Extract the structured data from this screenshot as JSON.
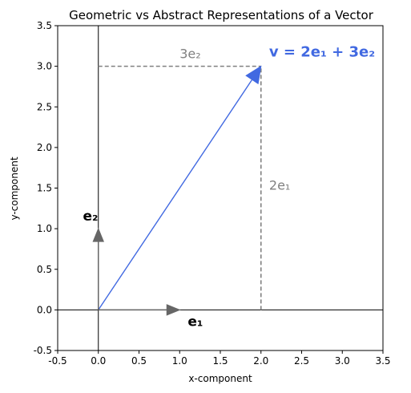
{
  "chart_data": {
    "type": "line",
    "title": "Geometric vs Abstract Representations of a Vector",
    "xlabel": "x-component",
    "ylabel": "y-component",
    "xlim": [
      -0.5,
      3.5
    ],
    "ylim": [
      -0.5,
      3.5
    ],
    "xticks": [
      "-0.5",
      "0.0",
      "0.5",
      "1.0",
      "1.5",
      "2.0",
      "2.5",
      "3.0",
      "3.5"
    ],
    "yticks": [
      "-0.5",
      "0.0",
      "0.5",
      "1.0",
      "1.5",
      "2.0",
      "2.5",
      "3.0",
      "3.5"
    ],
    "grid": false,
    "vectors": [
      {
        "label": "v = 2e₁ + 3e₂",
        "from": [
          0,
          0
        ],
        "to": [
          2,
          3
        ],
        "color": "#4169e1"
      },
      {
        "label": "e₁",
        "from": [
          0,
          0
        ],
        "to": [
          1,
          0
        ],
        "color": "#666666"
      },
      {
        "label": "e₂",
        "from": [
          0,
          0
        ],
        "to": [
          0,
          1
        ],
        "color": "#666666"
      }
    ],
    "component_lines": [
      {
        "label": "3e₂",
        "points": [
          [
            0,
            3
          ],
          [
            2,
            3
          ]
        ],
        "color": "#808080"
      },
      {
        "label": "2e₁",
        "points": [
          [
            2,
            0
          ],
          [
            2,
            3
          ]
        ],
        "color": "#808080"
      }
    ],
    "axis_lines": [
      {
        "x": 0
      },
      {
        "y": 0
      }
    ]
  }
}
